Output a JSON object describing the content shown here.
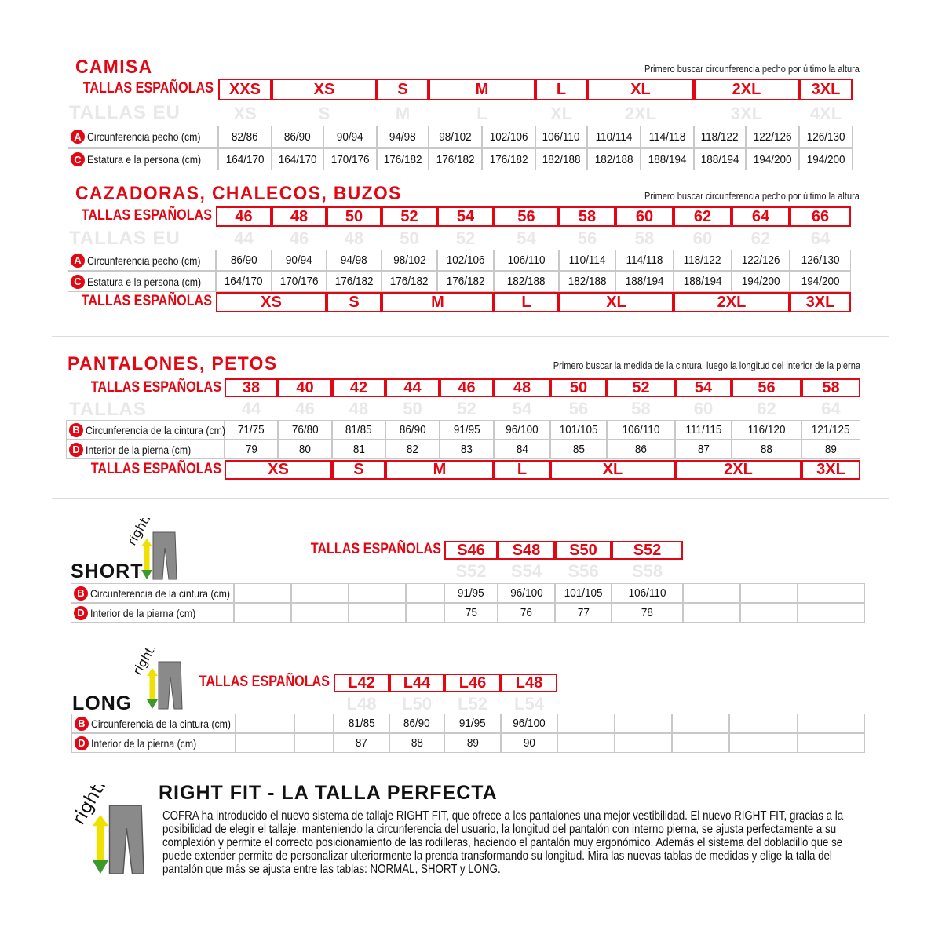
{
  "colors": {
    "brand_red": "#e30613",
    "ghost": "#e8e8e8"
  },
  "camisa": {
    "title": "CAMISA",
    "note": "Primero buscar circunferencia pecho por último la altura",
    "es_label": "TALLAS ESPAÑOLAS",
    "eu_label": "TALLAS EU",
    "es_sizes": [
      "XXS",
      "XS",
      "S",
      "M",
      "L",
      "XL",
      "2XL",
      "3XL"
    ],
    "eu_sizes": [
      "XS",
      "S",
      "M",
      "L",
      "XL",
      "2XL",
      "3XL",
      "4XL"
    ],
    "rows": [
      {
        "badge": "A",
        "label": "Circunferencia pecho (cm)",
        "values": [
          "82/86",
          "86/90",
          "90/94",
          "94/98",
          "98/102",
          "102/106",
          "106/110",
          "110/114",
          "114/118",
          "118/122",
          "122/126",
          "126/130"
        ]
      },
      {
        "badge": "C",
        "label": "Estatura e la persona (cm)",
        "values": [
          "164/170",
          "164/170",
          "170/176",
          "176/182",
          "176/182",
          "176/182",
          "182/188",
          "182/188",
          "188/194",
          "188/194",
          "194/200",
          "194/200"
        ]
      }
    ]
  },
  "cazadoras": {
    "title": "CAZADORAS, CHALECOS, BUZOS",
    "note": "Primero buscar circunferencia pecho por último la altura",
    "es_label": "TALLAS ESPAÑOLAS",
    "eu_label": "TALLAS EU",
    "es_sizes": [
      "46",
      "48",
      "50",
      "52",
      "54",
      "56",
      "58",
      "60",
      "62",
      "64",
      "66"
    ],
    "eu_sizes": [
      "44",
      "46",
      "48",
      "50",
      "52",
      "54",
      "56",
      "58",
      "60",
      "62",
      "64"
    ],
    "rows": [
      {
        "badge": "A",
        "label": "Circunferencia pecho (cm)",
        "values": [
          "86/90",
          "90/94",
          "94/98",
          "98/102",
          "102/106",
          "106/110",
          "110/114",
          "114/118",
          "118/122",
          "122/126",
          "126/130"
        ]
      },
      {
        "badge": "C",
        "label": "Estatura e la persona (cm)",
        "values": [
          "164/170",
          "170/176",
          "176/182",
          "176/182",
          "176/182",
          "182/188",
          "182/188",
          "188/194",
          "188/194",
          "194/200",
          "194/200"
        ]
      }
    ],
    "letter_label": "TALLAS ESPAÑOLAS",
    "letter_sizes": [
      "XS",
      "S",
      "M",
      "L",
      "XL",
      "2XL",
      "3XL"
    ]
  },
  "pantalones": {
    "title": "PANTALONES, PETOS",
    "note": "Primero buscar la medida de la cintura, luego la longitud del interior de la pierna",
    "es_label": "TALLAS ESPAÑOLAS",
    "eu_label": "TALLAS",
    "es_sizes": [
      "38",
      "40",
      "42",
      "44",
      "46",
      "48",
      "50",
      "52",
      "54",
      "56",
      "58"
    ],
    "eu_sizes": [
      "44",
      "46",
      "48",
      "50",
      "52",
      "54",
      "56",
      "58",
      "60",
      "62",
      "64"
    ],
    "rows": [
      {
        "badge": "B",
        "label": "Circunferencia de la cintura (cm)",
        "values": [
          "71/75",
          "76/80",
          "81/85",
          "86/90",
          "91/95",
          "96/100",
          "101/105",
          "106/110",
          "111/115",
          "116/120",
          "121/125"
        ]
      },
      {
        "badge": "D",
        "label": "Interior de la pierna (cm)",
        "values": [
          "79",
          "80",
          "81",
          "82",
          "83",
          "84",
          "85",
          "86",
          "87",
          "88",
          "89"
        ]
      }
    ],
    "letter_label": "TALLAS ESPAÑOLAS",
    "letter_sizes": [
      "XS",
      "S",
      "M",
      "L",
      "XL",
      "2XL",
      "3XL"
    ]
  },
  "short": {
    "title": "SHORT",
    "logo_text": "rightfit",
    "es_label": "TALLAS ESPAÑOLAS",
    "es_sizes": [
      "S46",
      "S48",
      "S50",
      "S52"
    ],
    "eu_sizes": [
      "S52",
      "S54",
      "S56",
      "S58"
    ],
    "rows": [
      {
        "badge": "B",
        "label": "Circunferencia de la cintura (cm)",
        "values": [
          "91/95",
          "96/100",
          "101/105",
          "106/110"
        ]
      },
      {
        "badge": "D",
        "label": "Interior de la pierna (cm)",
        "values": [
          "75",
          "76",
          "77",
          "78"
        ]
      }
    ]
  },
  "long": {
    "title": "LONG",
    "logo_text": "rightfit",
    "es_label": "TALLAS ESPAÑOLAS",
    "es_sizes": [
      "L42",
      "L44",
      "L46",
      "L48"
    ],
    "eu_sizes": [
      "L48",
      "L50",
      "L52",
      "L54"
    ],
    "rows": [
      {
        "badge": "B",
        "label": "Circunferencia de la cintura (cm)",
        "values": [
          "81/85",
          "86/90",
          "91/95",
          "96/100"
        ]
      },
      {
        "badge": "D",
        "label": "Interior de la pierna (cm)",
        "values": [
          "87",
          "88",
          "89",
          "90"
        ]
      }
    ]
  },
  "rightfit": {
    "logo_text": "rightfit",
    "title": "RIGHT FIT - LA TALLA PERFECTA",
    "text": "COFRA ha introducido el nuevo sistema de tallaje RIGHT FIT, que ofrece a los pantalones una mejor vestibilidad. El nuevo RIGHT FIT, gracias a la posibilidad de elegir el tallaje, manteniendo la circunferencia del usuario, la longitud del pantalón con interno pierna, se ajusta perfectamente a su complexión y permite el correcto posicionamiento de las rodilleras, haciendo el pantalón muy ergonómico. Además el sistema del dobladillo que se puede extender permite de personalizar ulteriormente la prenda transformando su longitud. Mira las nuevas tablas de medidas y elige la talla del pantalón que más se ajusta entre las tablas: NORMAL, SHORT y LONG."
  }
}
